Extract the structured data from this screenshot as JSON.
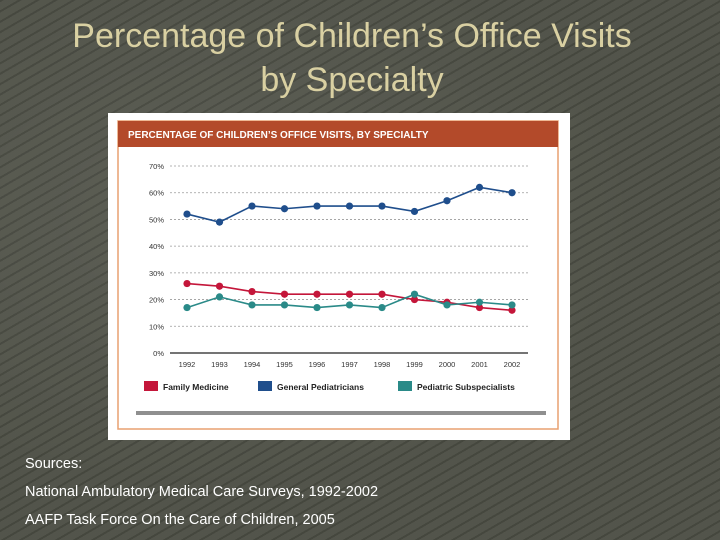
{
  "slide": {
    "title_line1": "Percentage of Children’s Office Visits",
    "title_line2": "by Specialty"
  },
  "sources": {
    "heading": "Sources:",
    "items": [
      "National Ambulatory Medical Care Surveys, 1992-2002",
      "AAFP Task Force On the Care of Children, 2005"
    ]
  },
  "colors": {
    "header": "#b34a2a",
    "family_medicine": "#c4163a",
    "general_pediatricians": "#1f4e8c",
    "pediatric_subspecialists": "#2a8a88",
    "frame": "#e8a070"
  },
  "chart_data": {
    "type": "line",
    "title": "PERCENTAGE OF CHILDREN’S OFFICE VISITS, BY SPECIALTY",
    "xlabel": "",
    "ylabel": "",
    "ylim": [
      0,
      70
    ],
    "yticks": [
      "0%",
      "10%",
      "20%",
      "30%",
      "40%",
      "50%",
      "60%",
      "70%"
    ],
    "categories": [
      "1992",
      "1993",
      "1994",
      "1995",
      "1996",
      "1997",
      "1998",
      "1999",
      "2000",
      "2001",
      "2002"
    ],
    "grid": true,
    "legend_position": "bottom",
    "series": [
      {
        "name": "Family Medicine",
        "color": "#c4163a",
        "values": [
          26,
          25,
          23,
          22,
          22,
          22,
          22,
          20,
          19,
          17,
          16
        ]
      },
      {
        "name": "General Pediatricians",
        "color": "#1f4e8c",
        "values": [
          52,
          49,
          55,
          54,
          55,
          55,
          55,
          53,
          57,
          62,
          60
        ]
      },
      {
        "name": "Pediatric Subspecialists",
        "color": "#2a8a88",
        "values": [
          17,
          21,
          18,
          18,
          17,
          18,
          17,
          22,
          18,
          19,
          18
        ]
      }
    ]
  }
}
